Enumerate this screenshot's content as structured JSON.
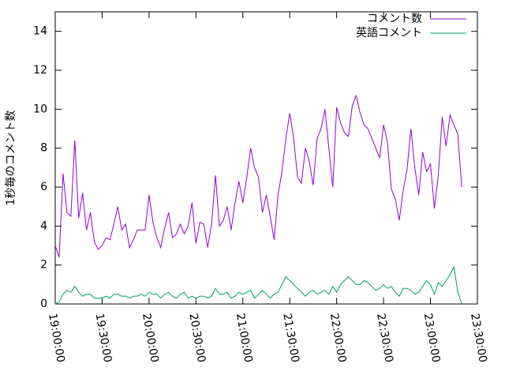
{
  "chart_data": {
    "type": "line",
    "ylabel": "1秒毎のコメント数",
    "legend": "top right",
    "xlim": [
      "19:00:00",
      "23:30:00"
    ],
    "xticks": [
      "19:00:00",
      "19:30:00",
      "20:00:00",
      "20:30:00",
      "21:00:00",
      "21:30:00",
      "22:00:00",
      "22:30:00",
      "23:00:00",
      "23:30:00"
    ],
    "ylim": [
      0,
      15
    ],
    "yticks": [
      0,
      2,
      4,
      6,
      8,
      10,
      12,
      14
    ],
    "x": [
      "19:00:00",
      "19:02:30",
      "19:05:00",
      "19:07:30",
      "19:10:00",
      "19:12:30",
      "19:15:00",
      "19:17:30",
      "19:20:00",
      "19:22:30",
      "19:25:00",
      "19:27:30",
      "19:30:00",
      "19:32:30",
      "19:35:00",
      "19:37:30",
      "19:40:00",
      "19:42:30",
      "19:45:00",
      "19:47:30",
      "19:50:00",
      "19:52:30",
      "19:55:00",
      "19:57:30",
      "20:00:00",
      "20:02:30",
      "20:05:00",
      "20:07:30",
      "20:10:00",
      "20:12:30",
      "20:15:00",
      "20:17:30",
      "20:20:00",
      "20:22:30",
      "20:25:00",
      "20:27:30",
      "20:30:00",
      "20:32:30",
      "20:35:00",
      "20:37:30",
      "20:40:00",
      "20:42:30",
      "20:45:00",
      "20:47:30",
      "20:50:00",
      "20:52:30",
      "20:55:00",
      "20:57:30",
      "21:00:00",
      "21:02:30",
      "21:05:00",
      "21:07:30",
      "21:10:00",
      "21:12:30",
      "21:15:00",
      "21:17:30",
      "21:20:00",
      "21:22:30",
      "21:25:00",
      "21:27:30",
      "21:30:00",
      "21:32:30",
      "21:35:00",
      "21:37:30",
      "21:40:00",
      "21:42:30",
      "21:45:00",
      "21:47:30",
      "21:50:00",
      "21:52:30",
      "21:55:00",
      "21:57:30",
      "22:00:00",
      "22:02:30",
      "22:05:00",
      "22:07:30",
      "22:10:00",
      "22:12:30",
      "22:15:00",
      "22:17:30",
      "22:20:00",
      "22:22:30",
      "22:25:00",
      "22:27:30",
      "22:30:00",
      "22:32:30",
      "22:35:00",
      "22:37:30",
      "22:40:00",
      "22:42:30",
      "22:45:00",
      "22:47:30",
      "22:50:00",
      "22:52:30",
      "22:55:00",
      "22:57:30",
      "23:00:00",
      "23:02:30",
      "23:05:00",
      "23:07:30",
      "23:10:00",
      "23:12:30",
      "23:15:00",
      "23:17:30",
      "23:20:00"
    ],
    "series": [
      {
        "name": "コメント数",
        "color": "#9400d3",
        "values": [
          3.0,
          2.4,
          6.7,
          4.7,
          4.5,
          8.4,
          4.4,
          5.7,
          3.8,
          4.7,
          3.2,
          2.8,
          3.0,
          3.4,
          3.3,
          4.1,
          5.0,
          3.8,
          4.1,
          2.9,
          3.3,
          3.8,
          3.8,
          3.8,
          5.6,
          4.2,
          3.4,
          2.9,
          3.9,
          4.7,
          3.4,
          3.6,
          4.1,
          3.6,
          4.0,
          5.2,
          3.1,
          4.2,
          4.1,
          2.9,
          4.1,
          6.6,
          4.0,
          4.3,
          5.0,
          3.8,
          5.2,
          6.3,
          5.2,
          6.5,
          8.0,
          7.0,
          6.5,
          4.7,
          5.6,
          4.5,
          3.3,
          5.6,
          6.8,
          8.5,
          9.8,
          8.5,
          6.5,
          6.2,
          8.0,
          7.3,
          6.1,
          8.5,
          9.0,
          10.0,
          8.0,
          6.0,
          10.1,
          9.3,
          8.8,
          8.6,
          10.2,
          10.7,
          9.8,
          9.2,
          9.0,
          8.5,
          8.0,
          7.5,
          9.2,
          8.3,
          5.9,
          5.4,
          4.3,
          5.8,
          6.9,
          9.0,
          7.0,
          5.6,
          7.8,
          6.8,
          7.2,
          4.9,
          6.6,
          9.6,
          8.1,
          9.7,
          9.2,
          8.7,
          6.0
        ]
      },
      {
        "name": "英語コメント",
        "color": "#009e73",
        "values": [
          0.0,
          0.1,
          0.5,
          0.7,
          0.6,
          0.9,
          0.6,
          0.4,
          0.5,
          0.5,
          0.3,
          0.3,
          0.3,
          0.4,
          0.3,
          0.5,
          0.5,
          0.4,
          0.4,
          0.3,
          0.4,
          0.4,
          0.5,
          0.4,
          0.6,
          0.5,
          0.5,
          0.3,
          0.5,
          0.6,
          0.4,
          0.3,
          0.5,
          0.6,
          0.3,
          0.4,
          0.3,
          0.4,
          0.4,
          0.3,
          0.4,
          0.8,
          0.5,
          0.5,
          0.6,
          0.3,
          0.4,
          0.6,
          0.5,
          0.6,
          0.7,
          0.3,
          0.5,
          0.7,
          0.5,
          0.3,
          0.5,
          0.6,
          1.0,
          1.4,
          1.2,
          1.0,
          0.8,
          0.6,
          0.4,
          0.6,
          0.7,
          0.5,
          0.6,
          0.7,
          0.5,
          0.9,
          0.6,
          1.0,
          1.2,
          1.4,
          1.2,
          1.0,
          1.0,
          1.2,
          1.1,
          0.9,
          0.7,
          0.8,
          1.0,
          0.8,
          0.9,
          0.6,
          0.4,
          0.8,
          0.8,
          0.7,
          0.5,
          0.6,
          0.9,
          1.2,
          1.0,
          0.5,
          1.1,
          0.9,
          1.2,
          1.5,
          1.9,
          0.6,
          0.0
        ]
      }
    ]
  }
}
